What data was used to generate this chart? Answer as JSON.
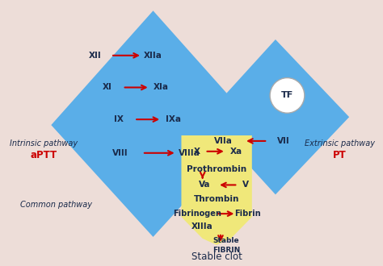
{
  "bg_color": "#edddd8",
  "blue_color": "#5aaee8",
  "yellow_color": "#f0e87a",
  "dark_navy": "#1a2a4a",
  "red_color": "#cc0000",
  "intrinsic_label": "Intrinsic pathway",
  "intrinsic_sub": "aPTT",
  "extrinsic_label": "Extrinsic pathway",
  "extrinsic_sub": "PT",
  "common_label": "Common pathway",
  "stable_clot": "Stable clot",
  "left_rows": [
    [
      "XII",
      "XIIa"
    ],
    [
      "XI",
      "XIa"
    ],
    [
      "IX",
      "IXa"
    ],
    [
      "VIII",
      "VIIIa"
    ]
  ],
  "right_row": [
    "VIIa",
    "VII"
  ],
  "tf_label": "TF"
}
